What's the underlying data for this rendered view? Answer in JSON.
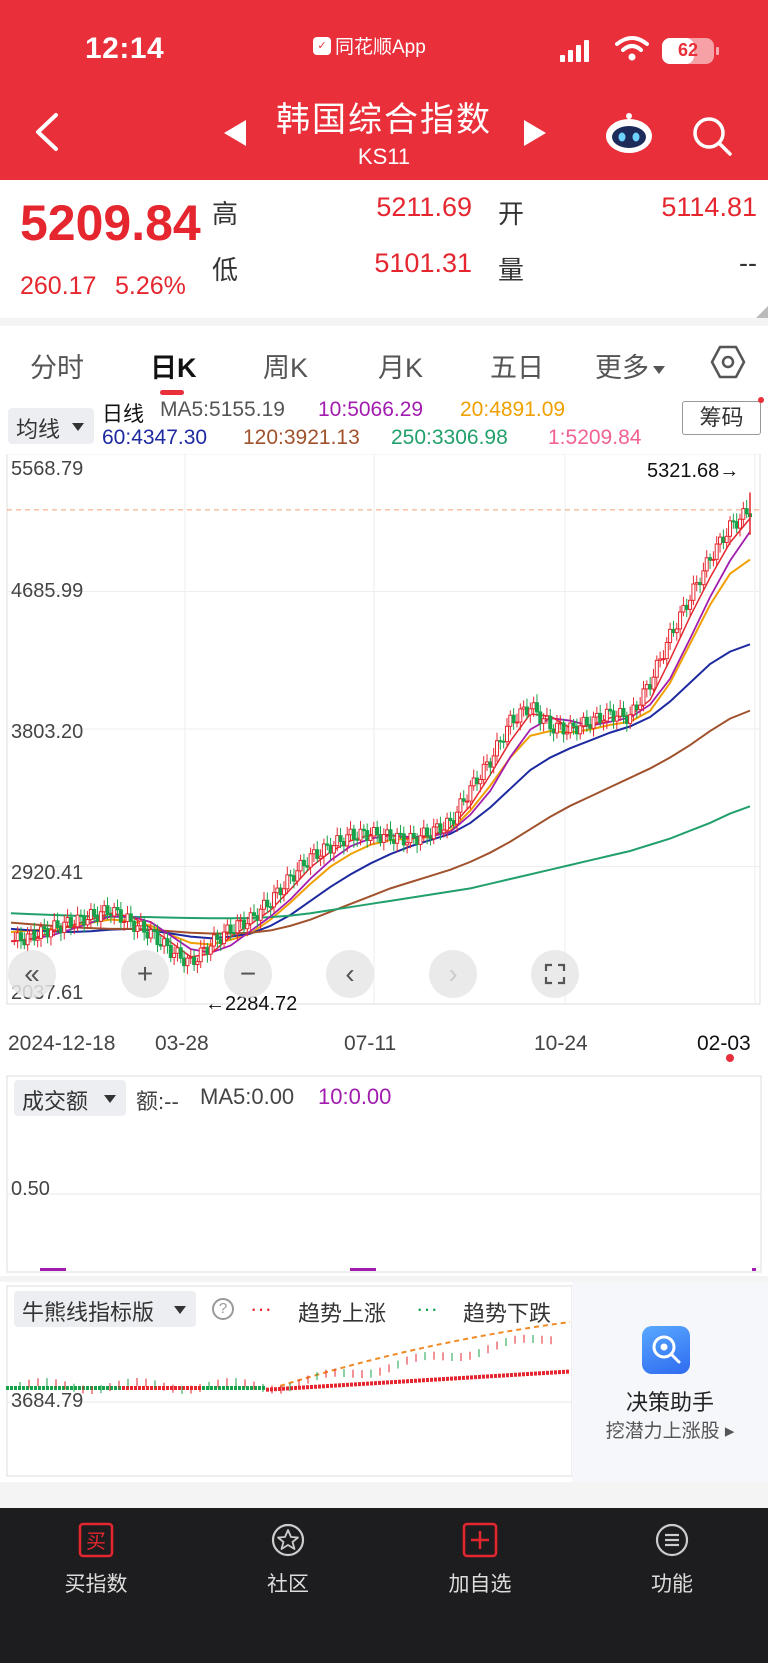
{
  "status_bar": {
    "time": "12:14",
    "app_name": "同花顺App",
    "battery": "62",
    "battery_level": 0.62
  },
  "header": {
    "title": "韩国综合指数",
    "code": "KS11"
  },
  "quote": {
    "price": "5209.84",
    "change": "260.17",
    "change_pct": "5.26%",
    "high_label": "高",
    "high": "5211.69",
    "low_label": "低",
    "low": "5101.31",
    "open_label": "开",
    "open": "5114.81",
    "volume_label": "量",
    "volume": "--"
  },
  "tabs": [
    {
      "label": "分时"
    },
    {
      "label": "日K"
    },
    {
      "label": "周K"
    },
    {
      "label": "月K"
    },
    {
      "label": "五日"
    },
    {
      "label": "更多"
    }
  ],
  "ma_panel": {
    "selector": "均线",
    "period": "日线",
    "ma5": "MA5:5155.19",
    "ma10": "10:5066.29",
    "ma20": "20:4891.09",
    "ma60": "60:4347.30",
    "ma120": "120:3921.13",
    "ma250": "250:3306.98",
    "ma1": "1:5209.84",
    "chip_button": "筹码"
  },
  "colors": {
    "up": "#e5262f",
    "down": "#16a34a",
    "ma5": "#e5262f",
    "ma10": "#a21caf",
    "ma20": "#f0a000",
    "ma60": "#1e2aa0",
    "ma120": "#a0522d",
    "ma250": "#22a06b",
    "ma1": "#f06292"
  },
  "main_axis": {
    "y_ticks": [
      "5568.79",
      "4685.99",
      "3803.20",
      "2920.41",
      "2037.61"
    ],
    "x_ticks": [
      "2024-12-18",
      "03-28",
      "07-11",
      "10-24",
      "02-03"
    ],
    "high_marker": "5321.68→",
    "low_marker": "←2284.72"
  },
  "chart_data": {
    "type": "candlestick",
    "ylim": [
      2037.61,
      5568.79
    ],
    "x_ticks": [
      "2024-12-18",
      "03-28",
      "07-11",
      "10-24",
      "02-03"
    ],
    "highest": 5321.68,
    "lowest": 2284.72,
    "close_series": [
      2440,
      2470,
      2520,
      2560,
      2600,
      2640,
      2560,
      2490,
      2380,
      2300,
      2420,
      2520,
      2580,
      2700,
      2850,
      2980,
      3050,
      3120,
      3130,
      3110,
      3090,
      3140,
      3200,
      3420,
      3600,
      3850,
      3950,
      3820,
      3800,
      3850,
      3900,
      3880,
      4100,
      4400,
      4650,
      4900,
      5100,
      5209.84
    ],
    "ma_series": {
      "MA20": [
        2500,
        2510,
        2520,
        2540,
        2560,
        2580,
        2570,
        2540,
        2480,
        2430,
        2420,
        2450,
        2490,
        2580,
        2690,
        2810,
        2920,
        3000,
        3060,
        3090,
        3100,
        3110,
        3150,
        3280,
        3440,
        3620,
        3760,
        3790,
        3780,
        3800,
        3830,
        3850,
        3920,
        4100,
        4350,
        4600,
        4800,
        4891.09
      ],
      "MA60": [
        2520,
        2510,
        2505,
        2500,
        2505,
        2515,
        2520,
        2510,
        2490,
        2470,
        2460,
        2470,
        2490,
        2540,
        2610,
        2700,
        2790,
        2870,
        2940,
        3000,
        3050,
        3090,
        3130,
        3200,
        3300,
        3420,
        3540,
        3620,
        3680,
        3730,
        3780,
        3820,
        3880,
        3980,
        4100,
        4220,
        4300,
        4347.3
      ],
      "MA120": [
        2560,
        2550,
        2540,
        2530,
        2525,
        2520,
        2520,
        2515,
        2505,
        2495,
        2490,
        2490,
        2495,
        2510,
        2540,
        2580,
        2630,
        2680,
        2730,
        2780,
        2820,
        2860,
        2900,
        2950,
        3010,
        3080,
        3160,
        3240,
        3310,
        3370,
        3430,
        3490,
        3550,
        3620,
        3700,
        3790,
        3870,
        3921.13
      ],
      "MA250": [
        2620,
        2615,
        2610,
        2605,
        2600,
        2598,
        2597,
        2595,
        2592,
        2590,
        2588,
        2588,
        2590,
        2595,
        2605,
        2620,
        2640,
        2660,
        2680,
        2700,
        2720,
        2740,
        2760,
        2780,
        2810,
        2840,
        2870,
        2900,
        2930,
        2960,
        2990,
        3020,
        3060,
        3100,
        3150,
        3200,
        3260,
        3306.98
      ]
    }
  },
  "volume_panel": {
    "selector": "成交额",
    "amount": "额:--",
    "ma5": "MA5:0.00",
    "ma10": "10:0.00",
    "y_tick": "0.50"
  },
  "bull_bear_panel": {
    "selector": "牛熊线指标版",
    "up_legend": "趋势上涨",
    "down_legend": "趋势下跌",
    "y_tick": "3684.79"
  },
  "decision": {
    "title": "决策助手",
    "subtitle": "挖潜力上涨股"
  },
  "bottom_nav": [
    {
      "label": "买指数",
      "icon": "买"
    },
    {
      "label": "社区",
      "icon": "star-icon"
    },
    {
      "label": "加自选",
      "icon": "plus-icon"
    },
    {
      "label": "功能",
      "icon": "menu-icon"
    }
  ]
}
